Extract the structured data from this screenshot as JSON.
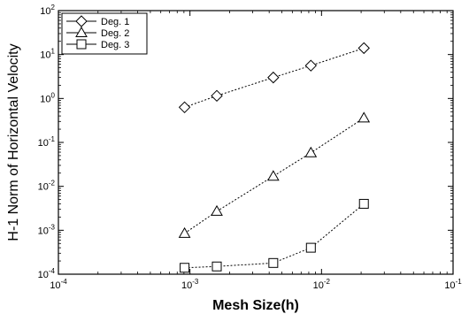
{
  "chart_data": {
    "type": "line",
    "title": "",
    "xlabel": "Mesh Size(h)",
    "ylabel": "H-1 Norm of Horizontal Velocity",
    "xscale": "log",
    "yscale": "log",
    "xlim": [
      0.0001,
      0.1
    ],
    "ylim": [
      0.0001,
      100
    ],
    "grid": false,
    "legend_position": "top-left",
    "x_ticks": [
      {
        "value": 0.0001,
        "base": "10",
        "exp": "-4"
      },
      {
        "value": 0.001,
        "base": "10",
        "exp": "-3"
      },
      {
        "value": 0.01,
        "base": "10",
        "exp": "-2"
      },
      {
        "value": 0.1,
        "base": "10",
        "exp": "-1"
      }
    ],
    "y_ticks": [
      {
        "value": 0.0001,
        "base": "10",
        "exp": "-4"
      },
      {
        "value": 0.001,
        "base": "10",
        "exp": "-3"
      },
      {
        "value": 0.01,
        "base": "10",
        "exp": "-2"
      },
      {
        "value": 0.1,
        "base": "10",
        "exp": "-1"
      },
      {
        "value": 1,
        "base": "10",
        "exp": "0"
      },
      {
        "value": 10,
        "base": "10",
        "exp": "1"
      },
      {
        "value": 100,
        "base": "10",
        "exp": "2"
      }
    ],
    "series": [
      {
        "name": "Deg. 1",
        "marker": "diamond",
        "x": [
          0.00091,
          0.0016,
          0.0043,
          0.0083,
          0.021
        ],
        "y": [
          0.63,
          1.15,
          3.0,
          5.6,
          14.0
        ]
      },
      {
        "name": "Deg. 2",
        "marker": "triangle",
        "x": [
          0.00091,
          0.0016,
          0.0043,
          0.0083,
          0.021
        ],
        "y": [
          0.00085,
          0.0027,
          0.017,
          0.058,
          0.36
        ]
      },
      {
        "name": "Deg. 3",
        "marker": "square",
        "x": [
          0.00091,
          0.0016,
          0.0043,
          0.0083,
          0.021
        ],
        "y": [
          0.00014,
          0.00015,
          0.00018,
          0.0004,
          0.004
        ]
      }
    ]
  }
}
